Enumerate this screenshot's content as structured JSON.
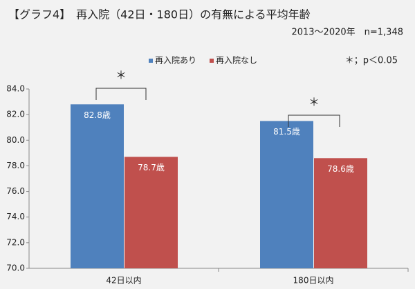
{
  "chart_data": {
    "type": "bar",
    "title": "【グラフ4】　再入院（42日・180日）の有無による平均年齢",
    "subtitle": "2013～2020年　n=1,348",
    "note": "＊；p＜0.05",
    "categories": [
      "42日以内",
      "180日以内"
    ],
    "series": [
      {
        "name": "再入院あり",
        "color": "#4f81bd",
        "values": [
          82.8,
          81.5
        ],
        "value_labels": [
          "82.8歳",
          "81.5歳"
        ]
      },
      {
        "name": "再入院なし",
        "color": "#c0504d",
        "values": [
          78.7,
          78.6
        ],
        "value_labels": [
          "78.7歳",
          "78.6歳"
        ]
      }
    ],
    "annotations": [
      "＊",
      "＊"
    ],
    "ylim": [
      70,
      84
    ],
    "yticks": [
      {
        "value": 70,
        "label": "70.0"
      },
      {
        "value": 72,
        "label": "72.0"
      },
      {
        "value": 74,
        "label": "74.0"
      },
      {
        "value": 76,
        "label": "76.0"
      },
      {
        "value": 78,
        "label": "78.0"
      },
      {
        "value": 80,
        "label": "80.0"
      },
      {
        "value": 82,
        "label": "82.0"
      },
      {
        "value": 84,
        "label": "84.0"
      }
    ],
    "legend": "top"
  }
}
